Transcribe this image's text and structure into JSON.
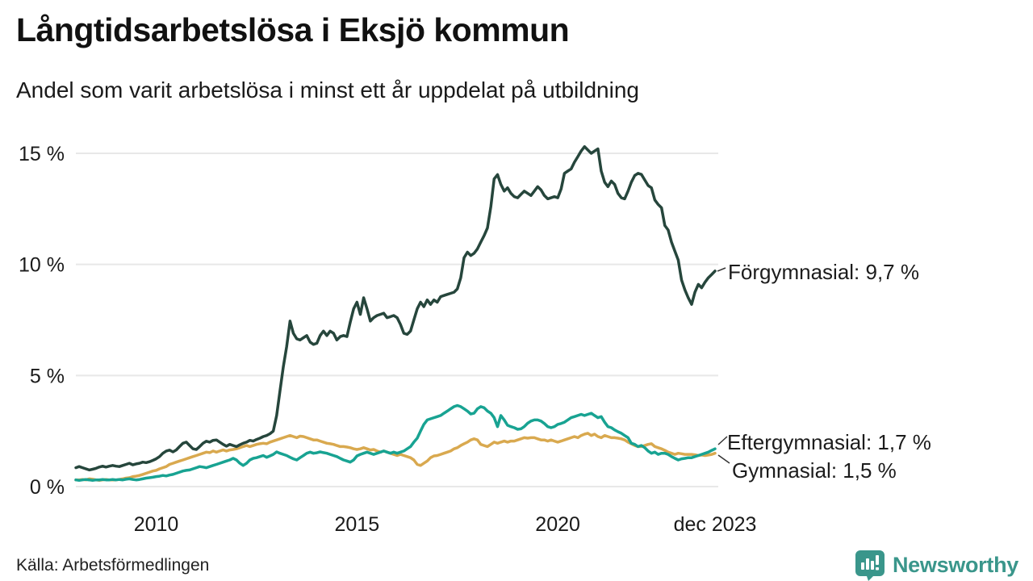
{
  "header": {
    "title": "Långtidsarbetslösa i Eksjö kommun",
    "subtitle": "Andel som varit arbetslösa i minst ett år uppdelat på utbildning"
  },
  "chart_data": {
    "type": "line",
    "unit": "%",
    "frequency": "monthly",
    "x_start": {
      "year": 2008,
      "month": 1
    },
    "x_end_label": "dec 2023",
    "ylim": [
      0,
      15.5
    ],
    "grid": "horizontal",
    "legend_position": "end-of-line-labels",
    "y_ticks": [
      {
        "value": 0,
        "label": "0 %"
      },
      {
        "value": 5,
        "label": "5 %"
      },
      {
        "value": 10,
        "label": "10 %"
      },
      {
        "value": 15,
        "label": "15 %"
      }
    ],
    "x_ticks": [
      {
        "label": "2010",
        "year": 2010,
        "month": 1
      },
      {
        "label": "2015",
        "year": 2015,
        "month": 1
      },
      {
        "label": "2020",
        "year": 2020,
        "month": 1
      },
      {
        "label": "dec 2023",
        "year": 2023,
        "month": 12
      }
    ],
    "series": [
      {
        "name": "Förgymnasial",
        "color": "#26463c",
        "end_value": 9.7,
        "end_label": "Förgymnasial: 9,7 %",
        "values": [
          0.85,
          0.9,
          0.85,
          0.8,
          0.75,
          0.78,
          0.82,
          0.88,
          0.92,
          0.88,
          0.92,
          0.95,
          0.92,
          0.9,
          0.95,
          1.0,
          1.05,
          0.98,
          1.02,
          1.05,
          1.1,
          1.08,
          1.12,
          1.18,
          1.25,
          1.35,
          1.5,
          1.6,
          1.64,
          1.56,
          1.65,
          1.8,
          1.95,
          2.0,
          1.85,
          1.7,
          1.67,
          1.8,
          1.95,
          2.04,
          2.0,
          2.08,
          2.1,
          2.0,
          1.9,
          1.82,
          1.9,
          1.85,
          1.8,
          1.88,
          1.95,
          2.0,
          2.08,
          2.05,
          2.12,
          2.18,
          2.25,
          2.3,
          2.38,
          2.5,
          3.2,
          4.3,
          5.4,
          6.3,
          7.45,
          6.9,
          6.65,
          6.6,
          6.7,
          6.8,
          6.5,
          6.4,
          6.45,
          6.8,
          7.0,
          6.8,
          7.0,
          6.9,
          6.6,
          6.75,
          6.8,
          6.75,
          7.4,
          8.0,
          8.3,
          7.75,
          8.5,
          8.0,
          7.45,
          7.6,
          7.7,
          7.75,
          7.8,
          7.6,
          7.65,
          7.7,
          7.6,
          7.3,
          6.9,
          6.85,
          7.0,
          7.5,
          8.0,
          8.3,
          8.1,
          8.4,
          8.2,
          8.4,
          8.3,
          8.55,
          8.6,
          8.65,
          8.7,
          8.75,
          8.9,
          9.4,
          10.3,
          10.55,
          10.4,
          10.5,
          10.7,
          11.0,
          11.3,
          11.64,
          12.6,
          13.85,
          14.04,
          13.6,
          13.3,
          13.45,
          13.2,
          13.05,
          13.0,
          13.15,
          13.3,
          13.2,
          13.1,
          13.3,
          13.5,
          13.35,
          13.1,
          12.95,
          13.0,
          13.05,
          13.0,
          13.4,
          14.1,
          14.2,
          14.3,
          14.6,
          14.85,
          15.1,
          15.3,
          15.15,
          15.0,
          15.1,
          15.2,
          14.2,
          13.7,
          13.5,
          13.75,
          13.6,
          13.2,
          13.0,
          12.95,
          13.3,
          13.7,
          14.0,
          14.1,
          14.05,
          13.8,
          13.55,
          13.45,
          12.9,
          12.7,
          12.55,
          11.75,
          11.55,
          11.0,
          10.6,
          10.2,
          9.3,
          8.85,
          8.5,
          8.2,
          8.75,
          9.1,
          8.95,
          9.2,
          9.4,
          9.55,
          9.7
        ]
      },
      {
        "name": "Eftergymnasial",
        "color": "#18a392",
        "end_value": 1.7,
        "end_label": "Eftergymnasial: 1,7 %",
        "values": [
          0.3,
          0.28,
          0.3,
          0.32,
          0.3,
          0.28,
          0.3,
          0.3,
          0.32,
          0.3,
          0.3,
          0.32,
          0.3,
          0.32,
          0.3,
          0.33,
          0.35,
          0.32,
          0.3,
          0.32,
          0.35,
          0.38,
          0.4,
          0.42,
          0.45,
          0.47,
          0.5,
          0.48,
          0.52,
          0.55,
          0.6,
          0.65,
          0.7,
          0.73,
          0.75,
          0.8,
          0.85,
          0.9,
          0.88,
          0.85,
          0.9,
          0.95,
          1.0,
          1.05,
          1.1,
          1.15,
          1.2,
          1.27,
          1.2,
          1.05,
          0.95,
          1.05,
          1.2,
          1.27,
          1.3,
          1.35,
          1.4,
          1.32,
          1.38,
          1.45,
          1.56,
          1.5,
          1.45,
          1.4,
          1.32,
          1.25,
          1.2,
          1.3,
          1.4,
          1.5,
          1.55,
          1.5,
          1.52,
          1.56,
          1.53,
          1.5,
          1.45,
          1.4,
          1.35,
          1.27,
          1.2,
          1.15,
          1.1,
          1.2,
          1.38,
          1.45,
          1.5,
          1.55,
          1.5,
          1.45,
          1.5,
          1.55,
          1.6,
          1.55,
          1.5,
          1.55,
          1.5,
          1.55,
          1.6,
          1.7,
          1.8,
          2.0,
          2.18,
          2.5,
          2.8,
          3.0,
          3.05,
          3.1,
          3.15,
          3.2,
          3.3,
          3.4,
          3.5,
          3.6,
          3.65,
          3.6,
          3.5,
          3.4,
          3.27,
          3.3,
          3.5,
          3.6,
          3.55,
          3.4,
          3.3,
          3.1,
          2.7,
          3.2,
          3.0,
          2.76,
          2.7,
          2.65,
          2.58,
          2.6,
          2.7,
          2.85,
          2.95,
          3.0,
          3.0,
          2.95,
          2.84,
          2.7,
          2.65,
          2.7,
          2.8,
          2.84,
          2.9,
          3.0,
          3.1,
          3.15,
          3.2,
          3.25,
          3.2,
          3.25,
          3.3,
          3.2,
          3.1,
          3.15,
          2.9,
          2.7,
          2.65,
          2.55,
          2.47,
          2.4,
          2.3,
          2.2,
          1.95,
          1.9,
          1.8,
          1.85,
          1.75,
          1.6,
          1.5,
          1.55,
          1.45,
          1.5,
          1.5,
          1.45,
          1.35,
          1.27,
          1.2,
          1.25,
          1.27,
          1.3,
          1.3,
          1.35,
          1.4,
          1.45,
          1.5,
          1.55,
          1.63,
          1.7
        ]
      },
      {
        "name": "Gymnasial",
        "color": "#d9a94f",
        "end_value": 1.5,
        "end_label": "Gymnasial: 1,5 %",
        "values": [
          0.3,
          0.3,
          0.32,
          0.3,
          0.35,
          0.33,
          0.3,
          0.28,
          0.3,
          0.32,
          0.3,
          0.3,
          0.3,
          0.32,
          0.35,
          0.38,
          0.4,
          0.45,
          0.47,
          0.5,
          0.55,
          0.6,
          0.65,
          0.7,
          0.73,
          0.8,
          0.85,
          0.9,
          1.0,
          1.05,
          1.1,
          1.15,
          1.2,
          1.25,
          1.3,
          1.35,
          1.4,
          1.45,
          1.5,
          1.55,
          1.53,
          1.6,
          1.55,
          1.6,
          1.65,
          1.6,
          1.65,
          1.67,
          1.7,
          1.75,
          1.8,
          1.85,
          1.8,
          1.85,
          1.9,
          1.93,
          1.95,
          1.93,
          2.0,
          2.05,
          2.1,
          2.15,
          2.2,
          2.25,
          2.3,
          2.25,
          2.2,
          2.27,
          2.25,
          2.2,
          2.15,
          2.1,
          2.1,
          2.05,
          2.0,
          1.95,
          1.93,
          1.9,
          1.85,
          1.8,
          1.8,
          1.78,
          1.75,
          1.7,
          1.67,
          1.7,
          1.75,
          1.7,
          1.65,
          1.67,
          1.6,
          1.55,
          1.6,
          1.55,
          1.5,
          1.45,
          1.4,
          1.45,
          1.4,
          1.35,
          1.3,
          1.2,
          1.0,
          0.95,
          1.05,
          1.15,
          1.3,
          1.38,
          1.4,
          1.45,
          1.5,
          1.55,
          1.6,
          1.7,
          1.75,
          1.85,
          1.93,
          2.0,
          2.1,
          2.15,
          2.1,
          1.9,
          1.85,
          1.8,
          1.9,
          2.0,
          1.95,
          2.0,
          2.05,
          2.0,
          2.05,
          2.05,
          2.1,
          2.15,
          2.2,
          2.18,
          2.2,
          2.2,
          2.15,
          2.1,
          2.1,
          2.05,
          2.1,
          2.05,
          2.0,
          2.05,
          2.1,
          2.15,
          2.2,
          2.25,
          2.2,
          2.3,
          2.36,
          2.4,
          2.3,
          2.36,
          2.25,
          2.2,
          2.3,
          2.25,
          2.2,
          2.2,
          2.18,
          2.15,
          2.1,
          2.0,
          1.93,
          1.85,
          1.8,
          1.8,
          1.85,
          1.9,
          1.93,
          1.8,
          1.75,
          1.7,
          1.63,
          1.55,
          1.5,
          1.45,
          1.5,
          1.48,
          1.45,
          1.45,
          1.45,
          1.43,
          1.4,
          1.42,
          1.4,
          1.42,
          1.45,
          1.5
        ]
      }
    ]
  },
  "footer": {
    "source": "Källa: Arbetsförmedlingen",
    "brand": "Newsworthy"
  },
  "colors": {
    "background": "#ffffff",
    "grid": "#e8e8e8",
    "text": "#1a1a1a",
    "leader": "#333333",
    "brand_teal": "#3a968b"
  }
}
